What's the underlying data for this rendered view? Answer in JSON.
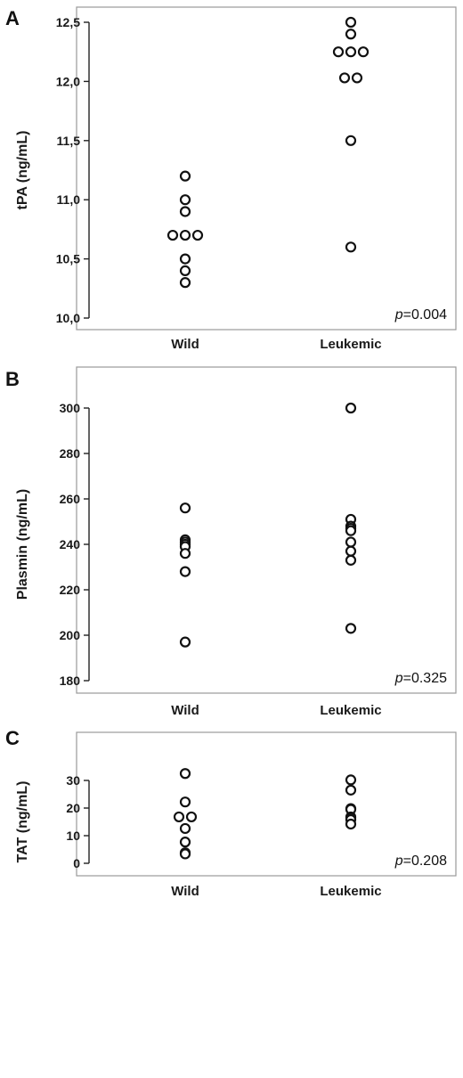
{
  "chart_data": [
    {
      "panel": "A",
      "type": "scatter",
      "ylabel": "tPA (ng/mL)",
      "categories": [
        "Wild",
        "Leukemic"
      ],
      "ylim": [
        10.0,
        12.5
      ],
      "yticks": [
        10.0,
        10.5,
        11.0,
        11.5,
        12.0,
        12.5
      ],
      "ytick_labels": [
        "10,0",
        "10,5",
        "11,0",
        "11,5",
        "12,0",
        "12,5"
      ],
      "annotation_italic": "p",
      "annotation_rest": "=0.004",
      "points": {
        "Wild": [
          11.2,
          11.0,
          10.9,
          10.7,
          10.7,
          10.7,
          10.5,
          10.4,
          10.3
        ],
        "Leukemic": [
          12.5,
          12.4,
          12.25,
          12.25,
          12.25,
          12.03,
          12.03,
          11.5,
          10.6
        ]
      }
    },
    {
      "panel": "B",
      "type": "scatter",
      "ylabel": "Plasmin (ng/mL)",
      "categories": [
        "Wild",
        "Leukemic"
      ],
      "ylim": [
        180,
        300
      ],
      "yticks": [
        180,
        200,
        220,
        240,
        260,
        280,
        300
      ],
      "ytick_labels": [
        "180",
        "200",
        "220",
        "240",
        "260",
        "280",
        "300"
      ],
      "annotation_italic": "p",
      "annotation_rest": "=0.325",
      "points": {
        "Wild": [
          256,
          242,
          241,
          240,
          239,
          236,
          228,
          197
        ],
        "Leukemic": [
          300,
          251,
          248,
          247,
          246,
          241,
          237,
          233,
          203
        ]
      }
    },
    {
      "panel": "C",
      "type": "scatter",
      "ylabel": "TAT (ng/mL)",
      "categories": [
        "Wild",
        "Leukemic"
      ],
      "ylim": [
        0,
        30
      ],
      "yticks": [
        0,
        10,
        20,
        30
      ],
      "ytick_labels": [
        "0",
        "10",
        "20",
        "30"
      ],
      "annotation_italic": "p",
      "annotation_rest": "=0.208",
      "points": {
        "Wild": [
          32.5,
          22.2,
          16.8,
          16.8,
          12.6,
          7.7,
          3.8,
          3.4
        ],
        "Leukemic": [
          30.2,
          26.5,
          19.8,
          19.5,
          16.8,
          16.5,
          15.8,
          14.2
        ]
      }
    }
  ]
}
